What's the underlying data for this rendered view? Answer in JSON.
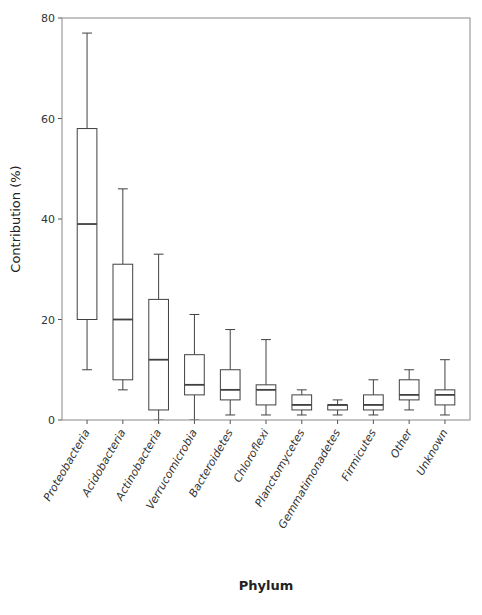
{
  "chart_data": {
    "type": "box",
    "categories": [
      "Proteobacteria",
      "Acidobacteria",
      "Actinobacteria",
      "Verrucomicrobia",
      "Bacteroidetes",
      "Chloroflexi",
      "Planctomycetes",
      "Gemmatimonadetes",
      "Firmicutes",
      "Other",
      "Unknown"
    ],
    "boxes": [
      {
        "whislo": 10,
        "q1": 20,
        "med": 39,
        "q3": 58,
        "whishi": 77
      },
      {
        "whislo": 6,
        "q1": 8,
        "med": 20,
        "q3": 31,
        "whishi": 46
      },
      {
        "whislo": 0,
        "q1": 2,
        "med": 12,
        "q3": 24,
        "whishi": 33
      },
      {
        "whislo": 0,
        "q1": 5,
        "med": 7,
        "q3": 13,
        "whishi": 21
      },
      {
        "whislo": 1,
        "q1": 4,
        "med": 6,
        "q3": 10,
        "whishi": 18
      },
      {
        "whislo": 1,
        "q1": 3,
        "med": 6,
        "q3": 7,
        "whishi": 16
      },
      {
        "whislo": 1,
        "q1": 2,
        "med": 3,
        "q3": 5,
        "whishi": 6
      },
      {
        "whislo": 1,
        "q1": 2,
        "med": 3,
        "q3": 3,
        "whishi": 4
      },
      {
        "whislo": 1,
        "q1": 2,
        "med": 3,
        "q3": 5,
        "whishi": 8
      },
      {
        "whislo": 2,
        "q1": 4,
        "med": 5,
        "q3": 8,
        "whishi": 10
      },
      {
        "whislo": 1,
        "q1": 3,
        "med": 5,
        "q3": 6,
        "whishi": 12
      }
    ],
    "xlabel": "Phylum",
    "ylabel": "Contribution (%)",
    "ylim": [
      0,
      80
    ],
    "yticks": [
      0,
      20,
      40,
      60,
      80
    ],
    "color": "#404040",
    "grid": false
  }
}
